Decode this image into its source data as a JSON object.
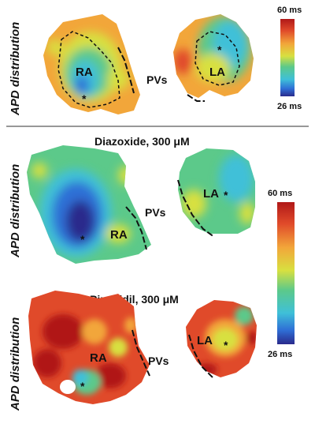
{
  "colors": {
    "colorscale": [
      "#2a2a8c",
      "#2f6fd6",
      "#3fc0d8",
      "#5cc98a",
      "#d8e040",
      "#f2a63a",
      "#e04a2a",
      "#b01818"
    ],
    "divider": "#777777",
    "contour": "#111111"
  },
  "top_panel": {
    "y_axis_label": "APD distribution",
    "labels": {
      "ra": "RA",
      "pvs": "PVs",
      "la": "LA"
    },
    "colorbar": {
      "max_label": "60 ms",
      "min_label": "26 ms"
    }
  },
  "diazoxide_panel": {
    "title": "Diazoxide, 300 μM",
    "y_axis_label": "APD distribution",
    "labels": {
      "ra": "RA",
      "pvs": "PVs",
      "la": "LA"
    }
  },
  "pinacidil_panel": {
    "title": "Pinacidil, 300 μM",
    "y_axis_label": "APD distribution",
    "labels": {
      "ra": "RA",
      "pvs": "PVs",
      "la": "LA"
    }
  },
  "shared_colorbar": {
    "max_label": "60 ms",
    "min_label": "26 ms"
  },
  "marker_symbol": "*"
}
